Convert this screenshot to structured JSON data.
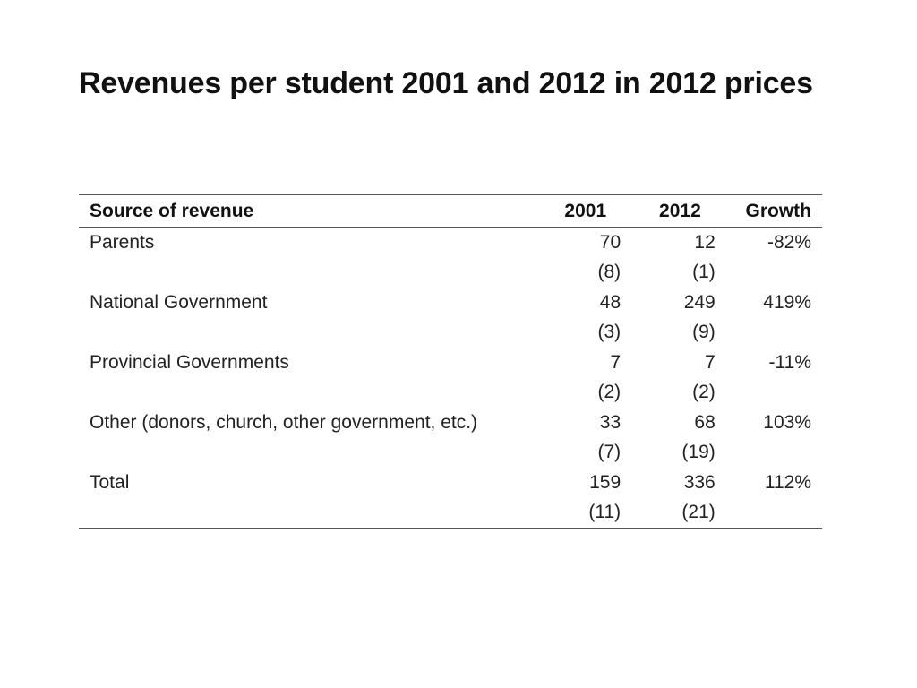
{
  "slide": {
    "title": "Revenues per student 2001 and 2012 in 2012 prices"
  },
  "table": {
    "headers": {
      "source": "Source of revenue",
      "y2001": "2001",
      "y2012": "2012",
      "growth": "Growth"
    },
    "rows": [
      {
        "source": "Parents",
        "y2001": "70",
        "y2012": "12",
        "growth": "-82%",
        "se2001": "(8)",
        "se2012": "(1)"
      },
      {
        "source": "National Government",
        "y2001": "48",
        "y2012": "249",
        "growth": "419%",
        "se2001": "(3)",
        "se2012": "(9)"
      },
      {
        "source": "Provincial Governments",
        "y2001": "7",
        "y2012": "7",
        "growth": "-11%",
        "se2001": "(2)",
        "se2012": "(2)"
      },
      {
        "source": "Other (donors, church, other government, etc.)",
        "y2001": "33",
        "y2012": "68",
        "growth": "103%",
        "se2001": "(7)",
        "se2012": "(19)"
      },
      {
        "source": "Total",
        "y2001": "159",
        "y2012": "336",
        "growth": "112%",
        "se2001": "(11)",
        "se2012": "(21)"
      }
    ]
  }
}
